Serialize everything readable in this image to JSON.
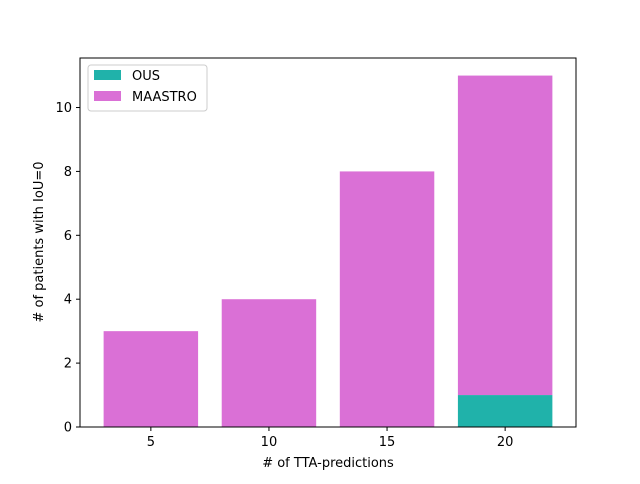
{
  "chart_data": {
    "type": "bar",
    "stacked": true,
    "categories": [
      "5",
      "10",
      "15",
      "20"
    ],
    "series": [
      {
        "name": "OUS",
        "values": [
          0,
          0,
          0,
          1
        ]
      },
      {
        "name": "MAASTRO",
        "values": [
          3,
          4,
          8,
          10
        ]
      }
    ],
    "title": "",
    "xlabel": "# of TTA-predictions",
    "ylabel": "# of patients with IoU=0",
    "ylim": [
      0,
      11.55
    ],
    "yticks": [
      0,
      2,
      4,
      6,
      8,
      10
    ],
    "grid": false,
    "legend_position": "top-left"
  },
  "colors": {
    "OUS": "#20b2aa",
    "MAASTRO": "#da70d6"
  }
}
